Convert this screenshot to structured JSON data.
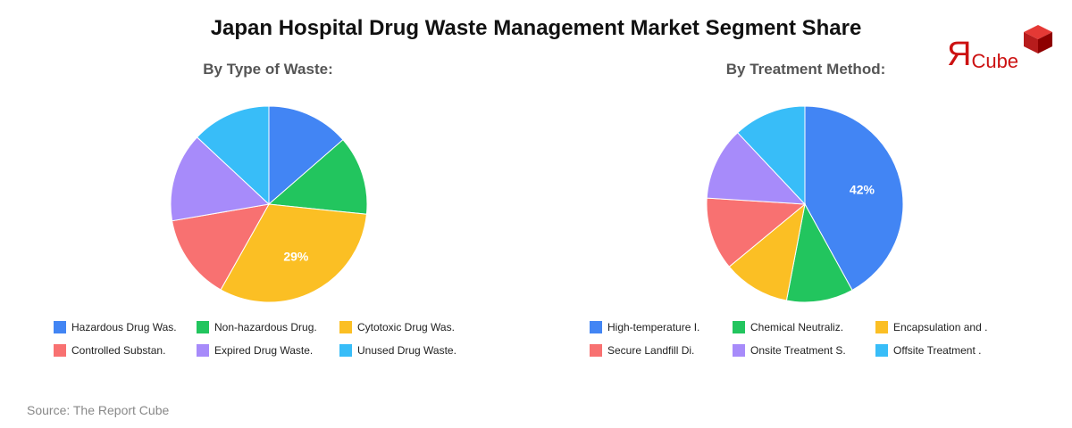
{
  "title": "Japan Hospital Drug Waste Management Market Segment Share",
  "logo": {
    "text_r": "R",
    "text_cube": "Cube",
    "cube_color": "#cc1111"
  },
  "source": "Source: The Report Cube",
  "chart_data": [
    {
      "type": "pie",
      "title": "By Type of Waste:",
      "categories": [
        "Hazardous Drug Was.",
        "Non-hazardous Drug.",
        "Cytotoxic Drug Was.",
        "Controlled Substan.",
        "Expired Drug Waste.",
        "Unused Drug Waste."
      ],
      "values": [
        12.5,
        12,
        29,
        13,
        13.5,
        12
      ],
      "colors": [
        "#4285f4",
        "#22c55e",
        "#fbbf24",
        "#f87171",
        "#a78bfa",
        "#38bdf8"
      ],
      "data_labels": [
        "",
        "",
        "29%",
        "",
        "",
        ""
      ],
      "legend_position": "bottom"
    },
    {
      "type": "pie",
      "title": "By Treatment Method:",
      "categories": [
        "High-temperature I.",
        "Chemical Neutraliz.",
        "Encapsulation and .",
        "Secure Landfill Di.",
        "Onsite Treatment S.",
        "Offsite Treatment ."
      ],
      "values": [
        42,
        11,
        11,
        12,
        12,
        12
      ],
      "colors": [
        "#4285f4",
        "#22c55e",
        "#fbbf24",
        "#f87171",
        "#a78bfa",
        "#38bdf8"
      ],
      "data_labels": [
        "42%",
        "",
        "",
        "",
        "",
        ""
      ],
      "legend_position": "bottom"
    }
  ]
}
